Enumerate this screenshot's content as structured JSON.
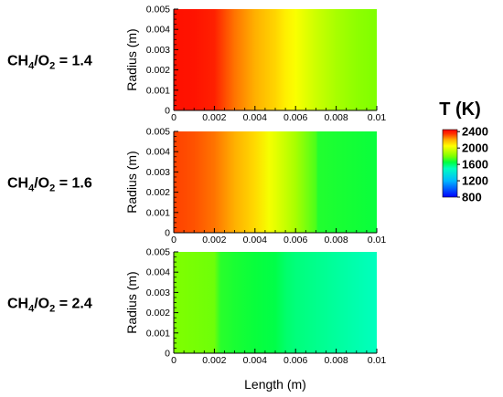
{
  "chart_data": {
    "type": "heatmap",
    "panels": [
      {
        "label": {
          "base": "CH",
          "sub1": "4",
          "mid": "/O",
          "sub2": "2",
          "value": " = 1.4"
        },
        "ylabel": "Radius (m)",
        "xlim": [
          0,
          0.01
        ],
        "ylim": [
          0,
          0.005
        ],
        "x_ticks": [
          "0",
          "0.002",
          "0.004",
          "0.006",
          "0.008",
          "0.01"
        ],
        "y_ticks": [
          "0",
          "0.001",
          "0.002",
          "0.003",
          "0.004",
          "0.005"
        ],
        "temperature_profile": {
          "x": [
            0,
            0.001,
            0.002,
            0.0025,
            0.003,
            0.004,
            0.005,
            0.0055,
            0.006,
            0.007,
            0.008,
            0.009,
            0.01
          ],
          "T": [
            2450,
            2440,
            2400,
            2320,
            2270,
            2200,
            2130,
            2080,
            2040,
            1950,
            1880,
            1830,
            1800
          ]
        }
      },
      {
        "label": {
          "base": "CH",
          "sub1": "4",
          "mid": "/O",
          "sub2": "2",
          "value": " = 1.6"
        },
        "ylabel": "Radius (m)",
        "xlim": [
          0,
          0.01
        ],
        "ylim": [
          0,
          0.005
        ],
        "x_ticks": [
          "0",
          "0.002",
          "0.004",
          "0.006",
          "0.008",
          "0.01"
        ],
        "y_ticks": [
          "0",
          "0.001",
          "0.002",
          "0.003",
          "0.004",
          "0.005"
        ],
        "temperature_profile": {
          "x": [
            0,
            0.001,
            0.002,
            0.003,
            0.004,
            0.0047,
            0.005,
            0.006,
            0.007,
            0.0071,
            0.008,
            0.009,
            0.01
          ],
          "T": [
            2330,
            2310,
            2270,
            2200,
            2120,
            2030,
            2000,
            1880,
            1740,
            1690,
            1680,
            1670,
            1660
          ]
        }
      },
      {
        "label": {
          "base": "CH",
          "sub1": "4",
          "mid": "/O",
          "sub2": "2",
          "value": " = 2.4"
        },
        "ylabel": "Radius (m)",
        "xlabel": "Length (m)",
        "xlim": [
          0,
          0.01
        ],
        "ylim": [
          0,
          0.005
        ],
        "x_ticks": [
          "0",
          "0.002",
          "0.004",
          "0.006",
          "0.008",
          "0.01"
        ],
        "y_ticks": [
          "0",
          "0.001",
          "0.002",
          "0.003",
          "0.004",
          "0.005"
        ],
        "temperature_profile": {
          "x": [
            0,
            0.001,
            0.002,
            0.0023,
            0.003,
            0.004,
            0.005,
            0.0055,
            0.006,
            0.007,
            0.008,
            0.009,
            0.01
          ],
          "T": [
            1800,
            1790,
            1780,
            1700,
            1680,
            1660,
            1640,
            1600,
            1580,
            1560,
            1540,
            1520,
            1500
          ]
        }
      }
    ],
    "colorbar": {
      "title": "T (K)",
      "ticks": [
        "2400",
        "2000",
        "1600",
        "1200",
        "800"
      ],
      "range": [
        800,
        2500
      ],
      "colormap": [
        {
          "T": 800,
          "color": "#0000ff"
        },
        {
          "T": 1200,
          "color": "#00b8ff"
        },
        {
          "T": 1500,
          "color": "#00ffbf"
        },
        {
          "T": 1650,
          "color": "#00ff40"
        },
        {
          "T": 1800,
          "color": "#7fff00"
        },
        {
          "T": 2050,
          "color": "#ffff00"
        },
        {
          "T": 2200,
          "color": "#ffb000"
        },
        {
          "T": 2350,
          "color": "#ff3000"
        },
        {
          "T": 2500,
          "color": "#ff0000"
        }
      ]
    }
  }
}
